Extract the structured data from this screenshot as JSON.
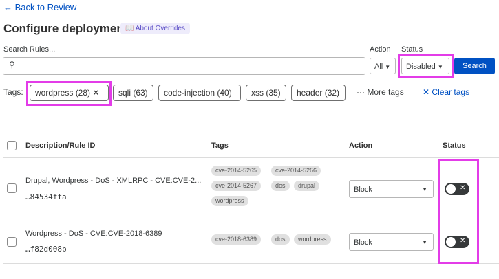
{
  "header": {
    "back_link": "← Back to Review",
    "title": "Configure deployment",
    "about_overrides": "About Overrides"
  },
  "search": {
    "label": "Search Rules...",
    "placeholder": "",
    "action_label": "Action",
    "action_value": "All",
    "status_label": "Status",
    "status_value": "Disabled",
    "search_button": "Search"
  },
  "tags": {
    "label": "Tags:",
    "items": [
      "wordpress (28)",
      "sqli (63)",
      "code-injection (40)",
      "xss (35)",
      "header (32)"
    ],
    "more": "More tags",
    "clear": "Clear tags"
  },
  "table": {
    "headers": [
      "Description/Rule ID",
      "Tags",
      "Action",
      "Status"
    ],
    "rows": [
      {
        "description": "Drupal, Wordpress - DoS - XMLRPC - CVE:CVE-2...",
        "rule_id": "…84534ffa",
        "tags": [
          "cve-2014-5265",
          "cve-2014-5266",
          "cve-2014-5267",
          "dos",
          "drupal",
          "wordpress"
        ],
        "action": "Block",
        "enabled": false
      },
      {
        "description": "Wordpress - DoS - CVE:CVE-2018-6389",
        "rule_id": "…f82d008b",
        "tags": [
          "cve-2018-6389",
          "dos",
          "wordpress"
        ],
        "action": "Block",
        "enabled": false
      }
    ]
  },
  "colors": {
    "accent": "#0051c3",
    "highlight": "#e33ce8"
  }
}
